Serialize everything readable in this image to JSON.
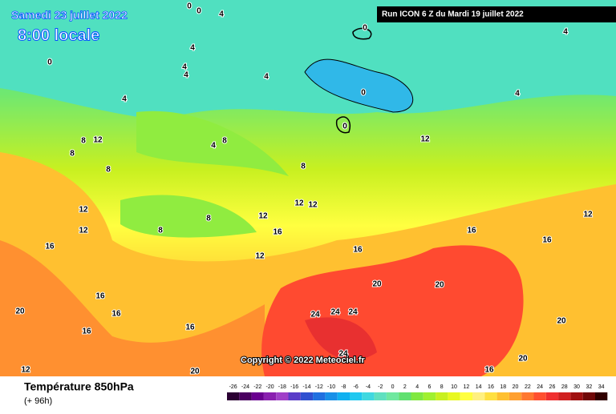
{
  "header": {
    "date": "Samedi 23 juillet 2022",
    "time": "8:00 locale",
    "run": "Run ICON 6 Z du Mardi 19 juillet 2022"
  },
  "copyright": "Copyright © 2022 Meteociel.fr",
  "footer": {
    "title": "Température 850hPa",
    "lead": "(+ 96h)"
  },
  "scale": {
    "labels": [
      -26,
      -24,
      -22,
      -20,
      -18,
      -16,
      -14,
      -12,
      -10,
      -8,
      -6,
      -4,
      -2,
      0,
      2,
      4,
      6,
      8,
      10,
      12,
      14,
      16,
      18,
      20,
      22,
      24,
      26,
      28,
      30,
      32,
      34
    ],
    "colors": [
      "#2b0033",
      "#4a0060",
      "#6a0090",
      "#8a20b0",
      "#a040c8",
      "#5a3cc8",
      "#3050d0",
      "#2070e0",
      "#1890e8",
      "#10b0f0",
      "#20c8f0",
      "#40d8e0",
      "#60e0c0",
      "#70e8a0",
      "#60e070",
      "#80e840",
      "#a0f030",
      "#c8f020",
      "#e8f820",
      "#ffff40",
      "#fff080",
      "#ffe040",
      "#ffc030",
      "#ffa030",
      "#ff7830",
      "#ff5030",
      "#f03030",
      "#d02020",
      "#a01010",
      "#700808",
      "#300000"
    ]
  },
  "contour_labels": [
    0,
    4,
    0,
    0,
    4,
    0,
    4,
    4,
    4,
    0,
    0,
    4,
    4,
    4,
    8,
    12,
    8,
    8,
    4,
    8,
    8,
    12,
    12,
    12,
    12,
    8,
    8,
    12,
    12,
    16,
    12,
    16,
    16,
    16,
    16,
    20,
    16,
    16,
    16,
    20,
    24,
    24,
    24,
    20,
    20,
    20,
    16,
    20,
    24,
    12,
    16,
    12
  ]
}
